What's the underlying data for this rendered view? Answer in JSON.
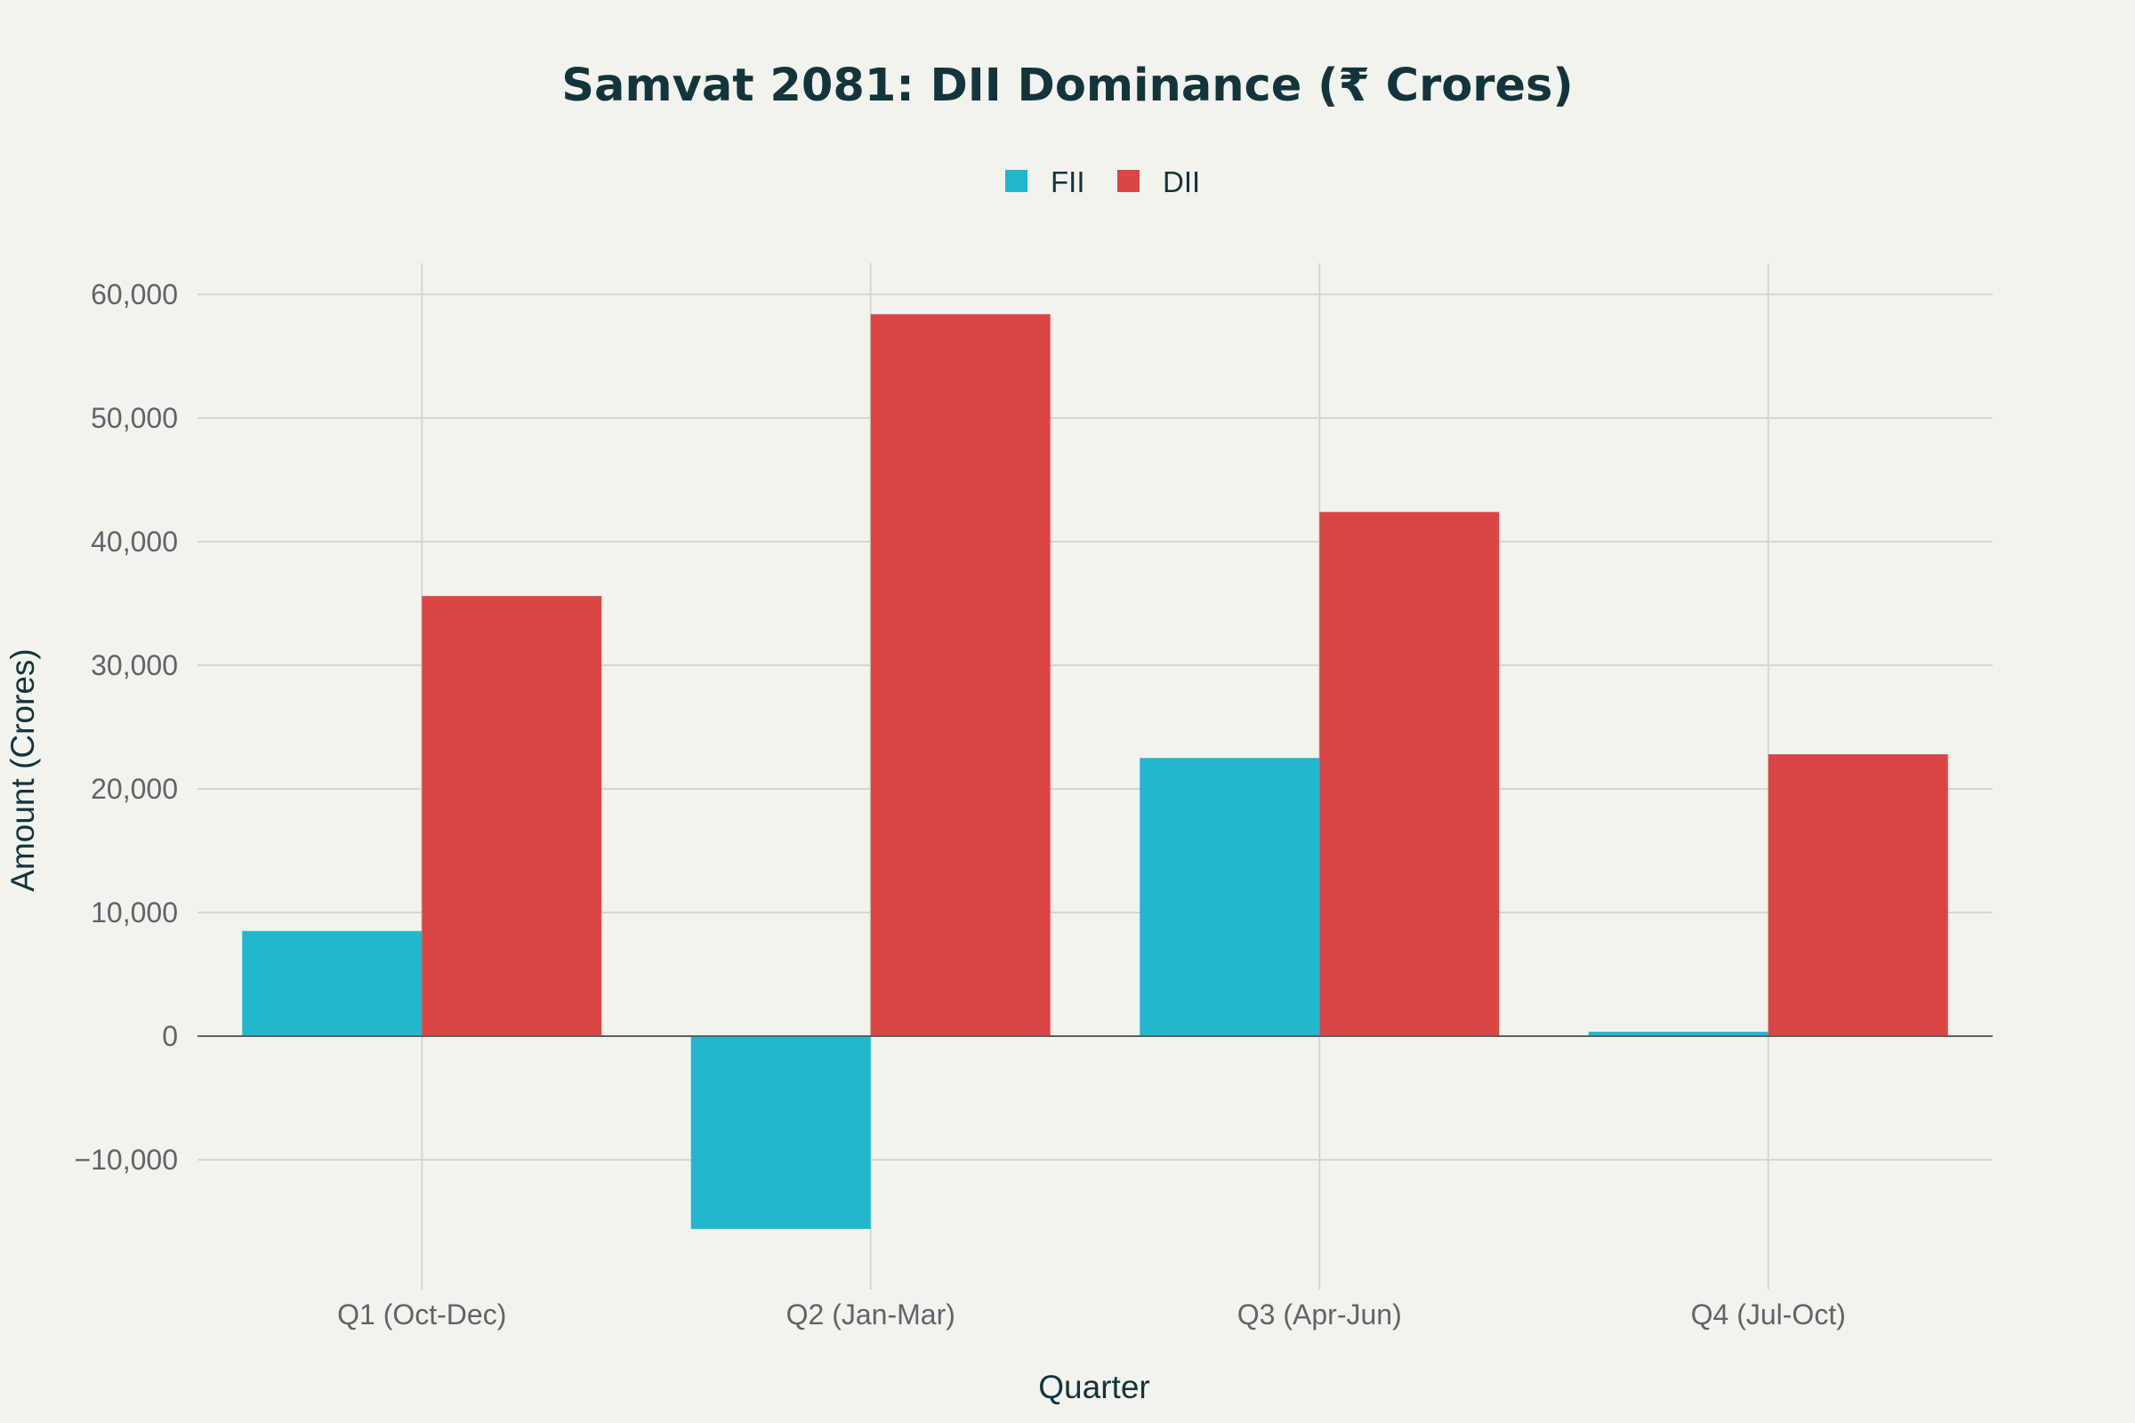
{
  "chart_data": {
    "type": "bar",
    "title": "Samvat 2081: DII Dominance (₹ Crores)",
    "xlabel": "Quarter",
    "ylabel": "Amount (Crores)",
    "categories": [
      "Q1 (Oct-Dec)",
      "Q2 (Jan-Mar)",
      "Q3 (Apr-Jun)",
      "Q4 (Jul-Oct)"
    ],
    "series": [
      {
        "name": "FII",
        "color": "#21b8cd",
        "values": [
          8500,
          -15600,
          22500,
          350
        ]
      },
      {
        "name": "DII",
        "color": "#db4546",
        "values": [
          35600,
          58400,
          42400,
          22800
        ]
      }
    ],
    "ylim": [
      -18500,
      62500
    ],
    "yticks": [
      -10000,
      0,
      10000,
      20000,
      30000,
      40000,
      50000,
      60000
    ],
    "ytick_labels": [
      "−10,000",
      "0",
      "10,000",
      "20,000",
      "30,000",
      "40,000",
      "50,000",
      "60,000"
    ],
    "grid": true,
    "legend_position": "top-center"
  }
}
